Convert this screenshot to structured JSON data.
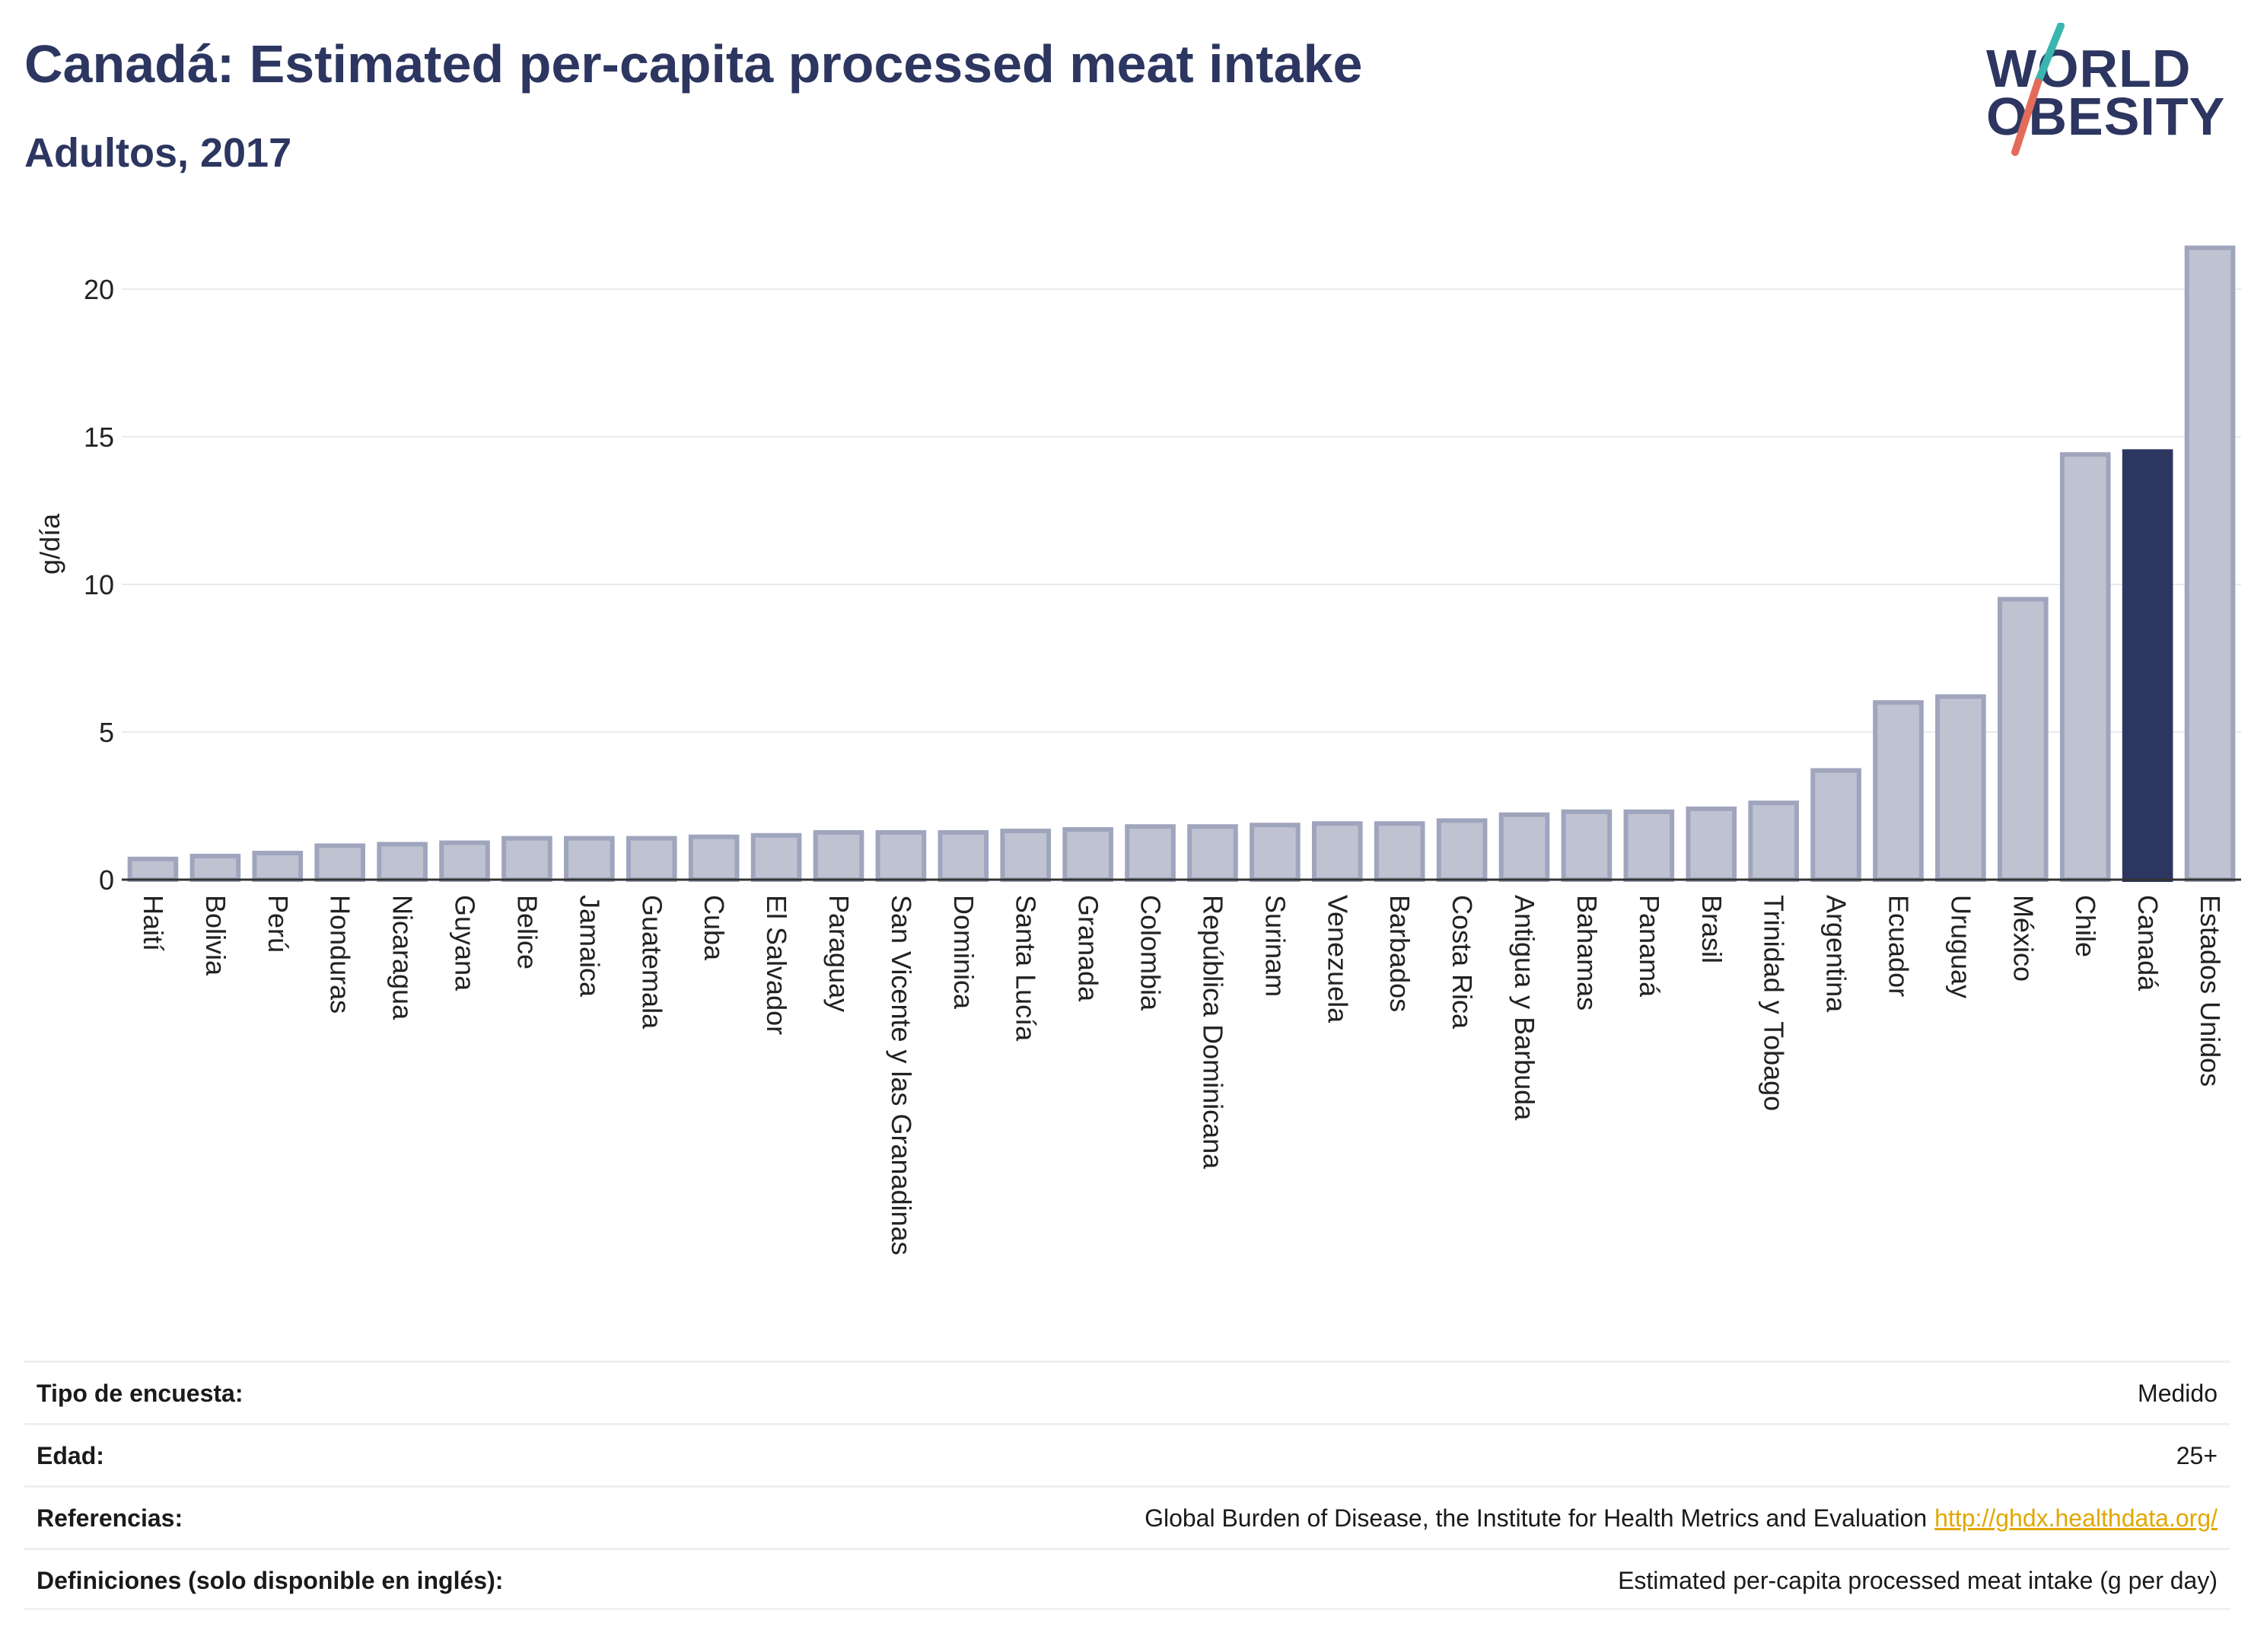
{
  "header": {
    "title": "Canadá: Estimated per-capita processed meat intake",
    "subtitle": "Adultos, 2017"
  },
  "logo": {
    "line1": "WORLD",
    "line2": "OBESITY",
    "colors": {
      "text": "#2c3660",
      "slash_top": "#3ab5b0",
      "slash_bottom": "#e36b5a"
    }
  },
  "colors": {
    "bar": "#bfc3d1",
    "bar_border": "#9fa5bd",
    "highlight": "#2c3660",
    "grid": "#e8eaee",
    "axis": "#333333"
  },
  "chart_data": {
    "type": "bar",
    "ylabel": "g/día",
    "ylim": [
      0,
      22
    ],
    "yticks": [
      0,
      5,
      10,
      15,
      20
    ],
    "grid": true,
    "highlight": "Canadá",
    "categories": [
      "Haití",
      "Bolivia",
      "Perú",
      "Honduras",
      "Nicaragua",
      "Guyana",
      "Belice",
      "Jamaica",
      "Guatemala",
      "Cuba",
      "El Salvador",
      "Paraguay",
      "San Vicente y las Granadinas",
      "Dominica",
      "Santa Lucía",
      "Granada",
      "Colombia",
      "República Dominicana",
      "Surinam",
      "Venezuela",
      "Barbados",
      "Costa Rica",
      "Antigua y Barbuda",
      "Bahamas",
      "Panamá",
      "Brasil",
      "Trinidad y Tobago",
      "Argentina",
      "Ecuador",
      "Uruguay",
      "México",
      "Chile",
      "Canadá",
      "Estados Unidos"
    ],
    "values": [
      0.7,
      0.8,
      0.9,
      1.15,
      1.2,
      1.25,
      1.4,
      1.4,
      1.4,
      1.45,
      1.5,
      1.6,
      1.6,
      1.6,
      1.65,
      1.7,
      1.8,
      1.8,
      1.85,
      1.9,
      1.9,
      2.0,
      2.2,
      2.3,
      2.3,
      2.4,
      2.6,
      3.7,
      6.0,
      6.2,
      9.5,
      14.4,
      14.5,
      21.4
    ]
  },
  "info": [
    {
      "label": "Tipo de encuesta:",
      "value": "Medido"
    },
    {
      "label": "Edad:",
      "value": "25+"
    },
    {
      "label": "Referencias:",
      "value": "Global Burden of Disease, the Institute for Health Metrics and Evaluation",
      "link": "http://ghdx.healthdata.org/"
    },
    {
      "label": "Definiciones (solo disponible en inglés):",
      "value": "Estimated per-capita processed meat intake (g per day)"
    }
  ]
}
